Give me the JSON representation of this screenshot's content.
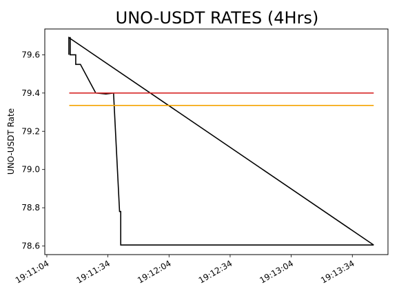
{
  "chart_data": {
    "type": "line",
    "title": "UNO-USDT RATES (4Hrs)",
    "xlabel": "",
    "ylabel": "UNO-USDT Rate",
    "x_ticks": [
      "19:11:04",
      "19:11:34",
      "19:12:04",
      "19:12:34",
      "19:13:04",
      "19:13:34"
    ],
    "x_tick_seconds": [
      0,
      30,
      60,
      90,
      120,
      150
    ],
    "xlim_seconds": [
      -1.0,
      167.5
    ],
    "y_ticks": [
      78.6,
      78.8,
      79.0,
      79.2,
      79.4,
      79.6
    ],
    "ylim": [
      78.555,
      79.735
    ],
    "grid": false,
    "series": [
      {
        "color": "#000000",
        "points": [
          [
            160.5,
            78.605
          ],
          [
            36.3,
            78.605
          ],
          [
            36.3,
            78.78
          ],
          [
            35.7,
            78.78
          ],
          [
            32.8,
            79.39
          ],
          [
            32.8,
            79.4
          ],
          [
            29.0,
            79.395
          ],
          [
            24.0,
            79.4
          ],
          [
            16.5,
            79.55
          ],
          [
            14.2,
            79.55
          ],
          [
            14.2,
            79.6
          ],
          [
            11.5,
            79.6
          ],
          [
            11.5,
            79.69
          ],
          [
            10.8,
            79.69
          ],
          [
            10.8,
            79.6
          ],
          [
            10.8,
            79.69
          ],
          [
            160.5,
            78.605
          ]
        ]
      },
      {
        "color": "#d62728",
        "points": [
          [
            11.0,
            79.4
          ],
          [
            160.5,
            79.4
          ]
        ]
      },
      {
        "color": "#f5a300",
        "points": [
          [
            11.0,
            79.335
          ],
          [
            160.5,
            79.335
          ]
        ]
      }
    ]
  }
}
